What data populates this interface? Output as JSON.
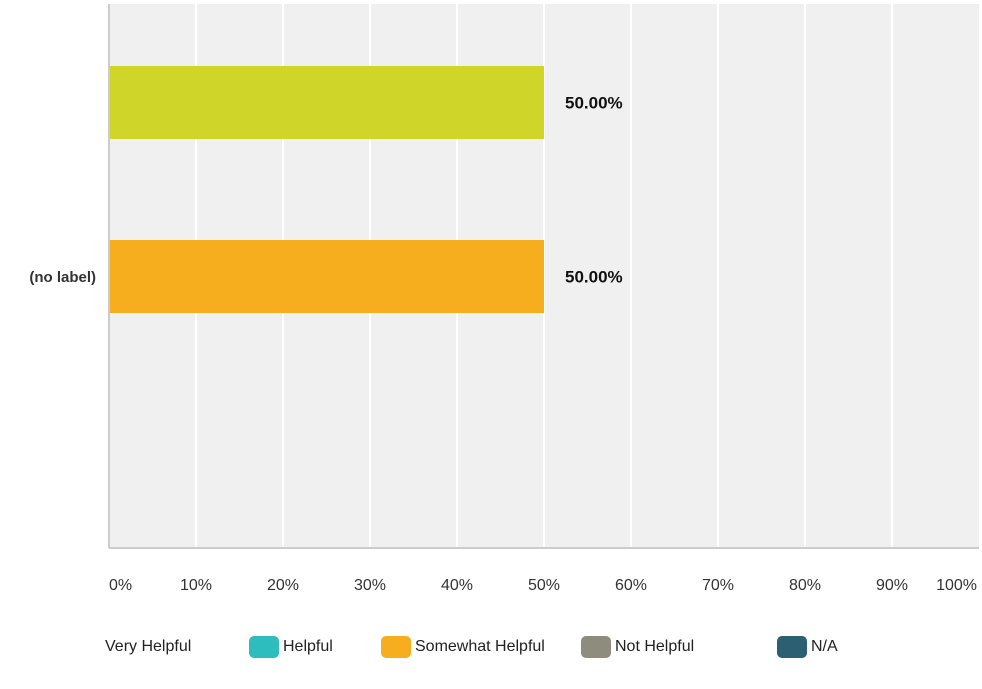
{
  "chart_data": {
    "type": "bar",
    "orientation": "horizontal",
    "categories": [
      "(no label)"
    ],
    "series": [
      {
        "name": "Very Helpful",
        "color": "#d0d52a",
        "values": [
          50.0
        ],
        "label": "50.00%"
      },
      {
        "name": "Helpful",
        "color": "#2dbdbd",
        "values": [
          null
        ],
        "label": ""
      },
      {
        "name": "Somewhat Helpful",
        "color": "#f6ae1f",
        "values": [
          50.0
        ],
        "label": "50.00%"
      },
      {
        "name": "Not Helpful",
        "color": "#8d8c7d",
        "values": [
          null
        ],
        "label": ""
      },
      {
        "name": "N/A",
        "color": "#2c5f71",
        "values": [
          null
        ],
        "label": ""
      }
    ],
    "x_ticks": [
      "0%",
      "10%",
      "20%",
      "30%",
      "40%",
      "50%",
      "60%",
      "70%",
      "80%",
      "90%",
      "100%"
    ],
    "xlim": [
      0,
      100
    ],
    "grid": true,
    "legend_position": "bottom",
    "plot_background": "#f0f0f0",
    "gridline_color": "#ffffff"
  }
}
